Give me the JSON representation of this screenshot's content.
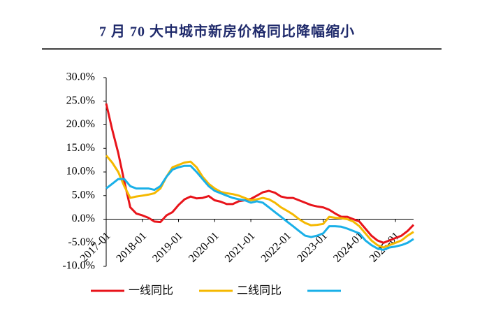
{
  "chart_data": {
    "type": "line",
    "title": "7 月 70 大中城市新房价格同比降幅缩小",
    "x": [
      "2017-01",
      "2017-03",
      "2017-05",
      "2017-07",
      "2017-09",
      "2017-11",
      "2018-01",
      "2018-03",
      "2018-05",
      "2018-07",
      "2018-09",
      "2018-11",
      "2019-01",
      "2019-03",
      "2019-05",
      "2019-07",
      "2019-09",
      "2019-11",
      "2020-01",
      "2020-03",
      "2020-05",
      "2020-07",
      "2020-09",
      "2020-11",
      "2021-01",
      "2021-03",
      "2021-05",
      "2021-07",
      "2021-09",
      "2021-11",
      "2022-01",
      "2022-03",
      "2022-05",
      "2022-07",
      "2022-09",
      "2022-11",
      "2023-01",
      "2023-03",
      "2023-05",
      "2023-07",
      "2023-09",
      "2023-11",
      "2024-01",
      "2024-03",
      "2024-05",
      "2024-07",
      "2024-09",
      "2024-11",
      "2025-01",
      "2025-03",
      "2025-05",
      "2025-07"
    ],
    "xlim": [
      "2017-01",
      "2025-07"
    ],
    "xticks": [
      "2017-01",
      "2018-01",
      "2019-01",
      "2020-01",
      "2021-01",
      "2022-01",
      "2023-01",
      "2024-01",
      "2025-01"
    ],
    "ylim": [
      -10,
      30
    ],
    "yticks": [
      {
        "value": -10,
        "label": "-10.0%"
      },
      {
        "value": -5,
        "label": "-5.0%"
      },
      {
        "value": 0,
        "label": "0.0%"
      },
      {
        "value": 5,
        "label": "5.0%"
      },
      {
        "value": 10,
        "label": "10.0%"
      },
      {
        "value": 15,
        "label": "15.0%"
      },
      {
        "value": 20,
        "label": "20.0%"
      },
      {
        "value": 25,
        "label": "25.0%"
      },
      {
        "value": 30,
        "label": "30.0%"
      }
    ],
    "series": [
      {
        "name": "一线同比",
        "color": "#e8141b",
        "values": [
          24.5,
          19,
          14,
          8,
          2.5,
          1.2,
          0.8,
          0.3,
          -0.5,
          -0.6,
          0.8,
          1.5,
          3,
          4.2,
          4.8,
          4.4,
          4.5,
          4.9,
          4.0,
          3.7,
          3.2,
          3.2,
          3.8,
          4.0,
          4.3,
          5.0,
          5.7,
          6.0,
          5.6,
          4.8,
          4.5,
          4.5,
          4.0,
          3.5,
          3.0,
          2.7,
          2.5,
          2.0,
          1.2,
          0.5,
          0.5,
          0,
          -0.5,
          -2,
          -3.5,
          -4.5,
          -5,
          -4.5,
          -4,
          -3.5,
          -2.5,
          -1.2
        ]
      },
      {
        "name": "二线同比",
        "color": "#f5b800",
        "values": [
          13.5,
          12,
          10,
          7,
          4.5,
          4.8,
          5,
          5.2,
          5.5,
          6.5,
          9,
          11,
          11.5,
          12,
          12.2,
          11,
          9,
          7.5,
          6.5,
          5.8,
          5.5,
          5.3,
          5.0,
          4.5,
          4.0,
          4.2,
          4.5,
          4.2,
          3.5,
          2.5,
          1.8,
          1.0,
          0,
          -0.8,
          -1.3,
          -1.2,
          -1.0,
          0.5,
          0.3,
          0.2,
          0,
          -0.5,
          -1.5,
          -3,
          -4.5,
          -5.5,
          -6,
          -5.5,
          -5,
          -4.5,
          -3.5,
          -2.7
        ]
      },
      {
        "color": "#1ab0e8",
        "values": [
          6.5,
          7.5,
          8.5,
          8.5,
          7,
          6.5,
          6.5,
          6.5,
          6.2,
          7,
          9,
          10.5,
          11,
          11.3,
          11.3,
          10,
          8.5,
          7,
          6,
          5.5,
          5,
          4.5,
          4.2,
          4.0,
          3.5,
          3.8,
          3.5,
          2.5,
          1.5,
          0.5,
          -0.5,
          -1.5,
          -2.5,
          -3.5,
          -3.8,
          -3.5,
          -3,
          -1.5,
          -1.5,
          -1.6,
          -2,
          -2.5,
          -3,
          -4.5,
          -5.5,
          -6.2,
          -6.5,
          -6,
          -5.8,
          -5.5,
          -5,
          -4.2
        ]
      }
    ]
  }
}
